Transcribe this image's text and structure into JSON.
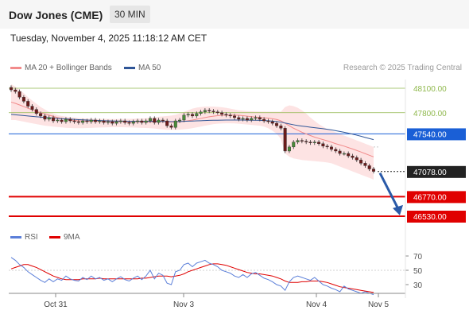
{
  "header": {
    "title": "Dow Jones (CME)",
    "interval": "30 MIN"
  },
  "timestamp": "Tuesday, November 4, 2025 11:18:12 AM CET",
  "credit": "Research © 2025 Trading Central",
  "legend": {
    "price": [
      {
        "label": "MA 20 + Bollinger Bands",
        "color": "#f28b8b"
      },
      {
        "label": "MA 50",
        "color": "#2f5597"
      }
    ],
    "rsi": [
      {
        "label": "RSI",
        "color": "#5b7fd9"
      },
      {
        "label": "9MA",
        "color": "#e00000"
      }
    ]
  },
  "chart_data": [
    {
      "type": "candlestick",
      "ylim": [
        46450,
        48250
      ],
      "x_ticks": [
        "Oct 31",
        "Nov 3",
        "Nov 4",
        "Nov 5"
      ],
      "levels": [
        {
          "value": 48100,
          "label": "48100.00",
          "kind": "resistance",
          "color": "#8fb84c"
        },
        {
          "value": 47800,
          "label": "47800.00",
          "kind": "resistance",
          "color": "#8fb84c"
        },
        {
          "value": 47540,
          "label": "47540.00",
          "kind": "pivot",
          "color": "#1a5fd6"
        },
        {
          "value": 47078,
          "label": "47078.00",
          "kind": "last",
          "color": "#222222"
        },
        {
          "value": 46770,
          "label": "46770.00",
          "kind": "support",
          "color": "#e00000"
        },
        {
          "value": 46530,
          "label": "46530.00",
          "kind": "support",
          "color": "#e00000"
        }
      ],
      "close": [
        48080,
        48060,
        47990,
        47940,
        47880,
        47840,
        47790,
        47760,
        47720,
        47740,
        47700,
        47710,
        47690,
        47720,
        47700,
        47690,
        47680,
        47700,
        47690,
        47710,
        47690,
        47700,
        47680,
        47690,
        47670,
        47690,
        47700,
        47680,
        47670,
        47690,
        47700,
        47680,
        47700,
        47730,
        47680,
        47710,
        47700,
        47640,
        47620,
        47700,
        47710,
        47770,
        47780,
        47760,
        47790,
        47810,
        47830,
        47820,
        47810,
        47800,
        47780,
        47770,
        47760,
        47740,
        47720,
        47730,
        47710,
        47730,
        47740,
        47720,
        47700,
        47690,
        47670,
        47640,
        47610,
        47330,
        47380,
        47440,
        47460,
        47450,
        47440,
        47430,
        47440,
        47420,
        47390,
        47380,
        47350,
        47330,
        47300,
        47300,
        47270,
        47250,
        47220,
        47180,
        47150,
        47110,
        47080
      ],
      "ma20": [
        47930,
        47915,
        47895,
        47875,
        47855,
        47835,
        47815,
        47800,
        47785,
        47770,
        47755,
        47740,
        47730,
        47720,
        47710,
        47705,
        47700,
        47698,
        47696,
        47695,
        47694,
        47693,
        47692,
        47691,
        47690,
        47690,
        47690,
        47689,
        47688,
        47688,
        47688,
        47687,
        47687,
        47688,
        47689,
        47690,
        47689,
        47686,
        47684,
        47685,
        47688,
        47694,
        47702,
        47710,
        47720,
        47730,
        47740,
        47750,
        47757,
        47763,
        47767,
        47770,
        47771,
        47770,
        47768,
        47764,
        47758,
        47752,
        47747,
        47743,
        47738,
        47733,
        47726,
        47717,
        47700,
        47670,
        47640,
        47610,
        47585,
        47560,
        47540,
        47520,
        47500,
        47485,
        47470,
        47455,
        47438,
        47420,
        47405,
        47390,
        47372,
        47355,
        47337,
        47318,
        47298,
        47278,
        47258
      ],
      "bb_upper": [
        48150,
        48120,
        48080,
        48040,
        47990,
        47950,
        47910,
        47870,
        47840,
        47810,
        47790,
        47770,
        47760,
        47752,
        47745,
        47740,
        47735,
        47732,
        47730,
        47728,
        47726,
        47725,
        47724,
        47723,
        47722,
        47722,
        47723,
        47724,
        47725,
        47726,
        47728,
        47730,
        47733,
        47738,
        47744,
        47750,
        47755,
        47760,
        47765,
        47775,
        47790,
        47810,
        47830,
        47850,
        47862,
        47870,
        47875,
        47876,
        47875,
        47872,
        47867,
        47860,
        47850,
        47840,
        47830,
        47825,
        47820,
        47817,
        47815,
        47814,
        47813,
        47812,
        47812,
        47812,
        47812,
        47870,
        47890,
        47880,
        47860,
        47830,
        47790,
        47740,
        47700,
        47660,
        47630,
        47600,
        47580,
        47560,
        47540,
        47520,
        47500,
        47480,
        47460,
        47440,
        47420,
        47400,
        47380
      ],
      "bb_lower": [
        47710,
        47710,
        47700,
        47690,
        47680,
        47670,
        47660,
        47650,
        47640,
        47635,
        47630,
        47625,
        47620,
        47615,
        47612,
        47610,
        47610,
        47610,
        47612,
        47614,
        47616,
        47618,
        47620,
        47621,
        47622,
        47622,
        47622,
        47621,
        47620,
        47618,
        47616,
        47614,
        47612,
        47610,
        47606,
        47600,
        47595,
        47590,
        47590,
        47590,
        47592,
        47596,
        47602,
        47610,
        47620,
        47630,
        47640,
        47650,
        47660,
        47665,
        47668,
        47670,
        47670,
        47668,
        47665,
        47660,
        47655,
        47650,
        47645,
        47640,
        47630,
        47610,
        47580,
        47540,
        47480,
        47300,
        47260,
        47240,
        47230,
        47220,
        47215,
        47210,
        47205,
        47200,
        47195,
        47190,
        47180,
        47160,
        47140,
        47120,
        47100,
        47080,
        47060,
        47040,
        47020,
        47000,
        46980
      ],
      "ma50": [
        47780,
        47775,
        47770,
        47765,
        47760,
        47755,
        47750,
        47746,
        47742,
        47738,
        47734,
        47730,
        47727,
        47724,
        47721,
        47718,
        47715,
        47712,
        47710,
        47708,
        47706,
        47704,
        47702,
        47700,
        47699,
        47698,
        47697,
        47696,
        47695,
        47694,
        47694,
        47694,
        47694,
        47694,
        47694,
        47694,
        47693,
        47692,
        47691,
        47691,
        47692,
        47694,
        47696,
        47698,
        47700,
        47702,
        47704,
        47706,
        47707,
        47708,
        47709,
        47710,
        47710,
        47710,
        47710,
        47710,
        47709,
        47708,
        47707,
        47706,
        47704,
        47701,
        47697,
        47692,
        47685,
        47673,
        47662,
        47652,
        47643,
        47636,
        47629,
        47622,
        47616,
        47610,
        47604,
        47597,
        47589,
        47580,
        47570,
        47560,
        47549,
        47537,
        47524,
        47511,
        47497,
        47483,
        47470
      ],
      "forecast_arrow": {
        "from": 47060,
        "to": 46600
      }
    },
    {
      "type": "line",
      "name": "RSI",
      "ylim": [
        15,
        80
      ],
      "y_ticks": [
        "70",
        "50",
        "30"
      ],
      "rsi": [
        68,
        64,
        58,
        54,
        48,
        44,
        40,
        36,
        33,
        38,
        34,
        38,
        36,
        42,
        38,
        36,
        35,
        40,
        37,
        42,
        38,
        40,
        36,
        38,
        34,
        38,
        41,
        37,
        35,
        39,
        42,
        37,
        42,
        50,
        38,
        46,
        43,
        32,
        30,
        48,
        50,
        58,
        60,
        55,
        60,
        62,
        64,
        60,
        58,
        55,
        50,
        48,
        46,
        42,
        40,
        44,
        40,
        45,
        47,
        43,
        39,
        37,
        34,
        30,
        28,
        22,
        34,
        40,
        42,
        40,
        38,
        36,
        40,
        35,
        30,
        28,
        25,
        23,
        20,
        28,
        24,
        22,
        20,
        18,
        20,
        18,
        16
      ],
      "ma9": [
        52,
        54,
        56,
        58,
        58,
        56,
        54,
        51,
        48,
        45,
        42,
        40,
        38,
        37,
        37,
        37,
        37,
        38,
        38,
        38,
        38,
        39,
        38,
        38,
        38,
        38,
        38,
        38,
        38,
        38,
        38,
        39,
        39,
        40,
        41,
        42,
        42,
        42,
        41,
        42,
        43,
        45,
        48,
        50,
        52,
        54,
        56,
        58,
        59,
        59,
        58,
        57,
        55,
        53,
        51,
        49,
        47,
        46,
        45,
        45,
        44,
        43,
        42,
        40,
        38,
        35,
        33,
        33,
        33,
        34,
        34,
        35,
        35,
        35,
        34,
        33,
        31,
        29,
        27,
        26,
        25,
        24,
        23,
        22,
        21,
        20,
        19
      ]
    }
  ]
}
